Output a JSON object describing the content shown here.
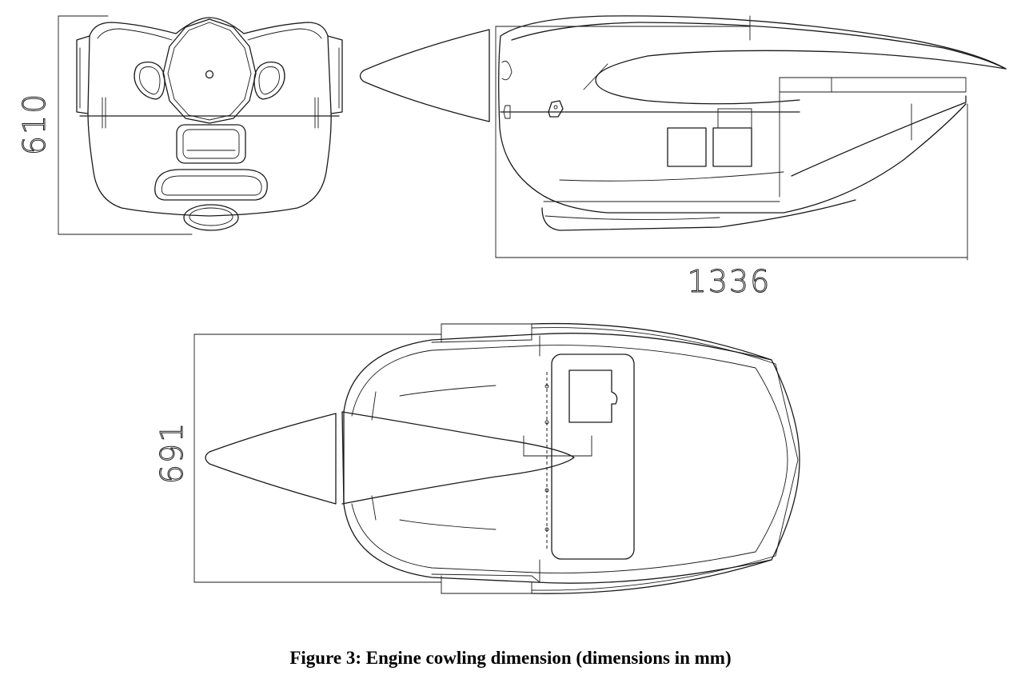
{
  "figure": {
    "caption": "Figure 3: Engine cowling dimension (dimensions in mm)"
  },
  "dimensions": {
    "front_height": "610",
    "side_length": "1336",
    "top_width": "691"
  },
  "colors": {
    "line": "#1a1a1a",
    "background": "#ffffff"
  }
}
